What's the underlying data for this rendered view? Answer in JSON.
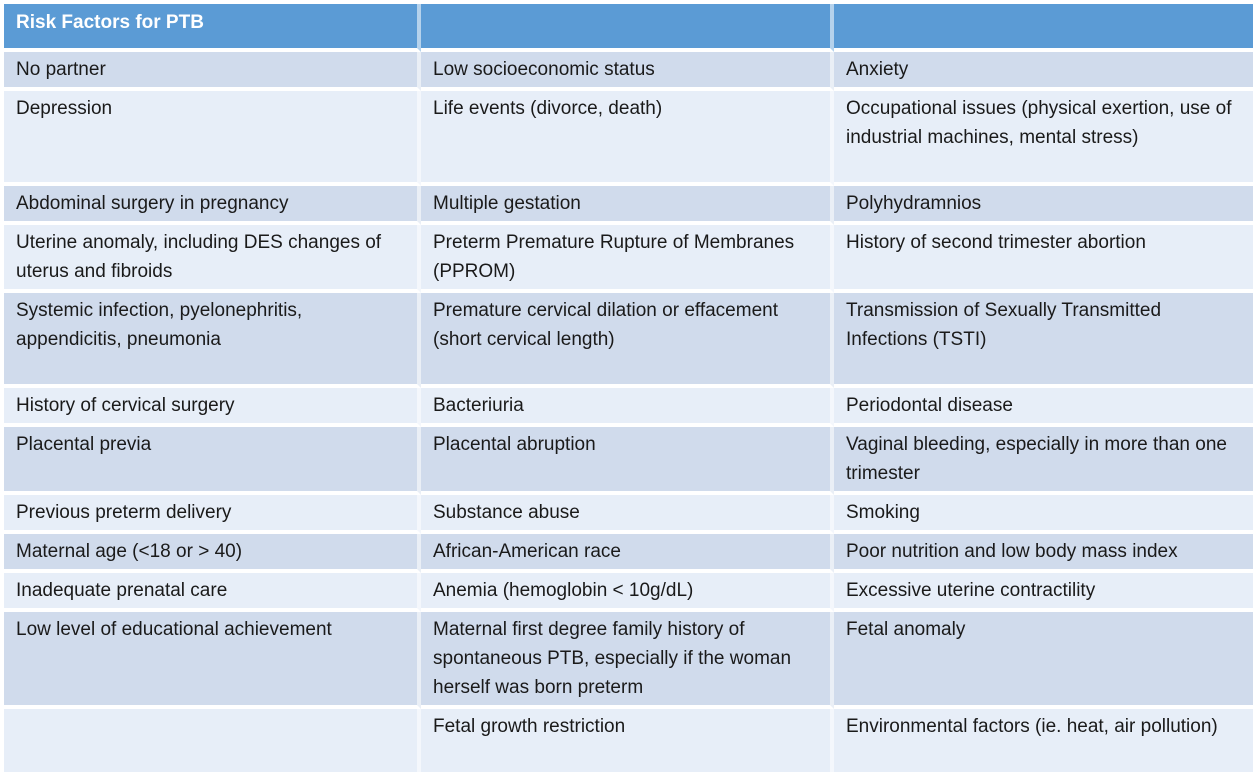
{
  "title": "Risk Factors for PTB",
  "header_cells": [
    "Risk Factors for PTB",
    "",
    ""
  ],
  "rows": [
    [
      "No partner",
      "Low socioeconomic status",
      "Anxiety"
    ],
    [
      "Depression",
      "Life events (divorce, death)",
      "Occupational issues (physical exertion, use of industrial machines, mental stress)"
    ],
    [
      "Abdominal surgery in pregnancy",
      "Multiple gestation",
      "Polyhydramnios"
    ],
    [
      "Uterine anomaly, including DES changes of uterus and fibroids",
      "Preterm Premature Rupture of Membranes (PPROM)",
      "History of second trimester abortion"
    ],
    [
      "Systemic infection, pyelonephritis, appendicitis, pneumonia",
      "Premature cervical dilation or effacement (short cervical length)",
      "Transmission of Sexually Transmitted Infections (TSTI)"
    ],
    [
      "History of cervical surgery",
      "Bacteriuria",
      "Periodontal disease"
    ],
    [
      "Placental previa",
      "Placental abruption",
      "Vaginal bleeding, especially in more than one trimester"
    ],
    [
      "Previous preterm delivery",
      "Substance abuse",
      "Smoking"
    ],
    [
      "Maternal age (<18 or > 40)",
      "African-American race",
      "Poor nutrition and low body mass index"
    ],
    [
      "Inadequate prenatal care",
      "Anemia (hemoglobin < 10g/dL)",
      "Excessive uterine contractility"
    ],
    [
      "Low level of educational achievement",
      "Maternal first degree family history of spontaneous PTB, especially if the woman herself was born preterm",
      "Fetal anomaly"
    ],
    [
      "",
      "Fetal growth restriction",
      "Environmental factors (ie. heat, air pollution)"
    ]
  ],
  "colors": {
    "header_bg": "#5B9BD5",
    "header_text": "#FFFFFF",
    "band_dark": "#D0DBEC",
    "band_light": "#E7EEF8",
    "body_text": "#1A1A1A"
  }
}
